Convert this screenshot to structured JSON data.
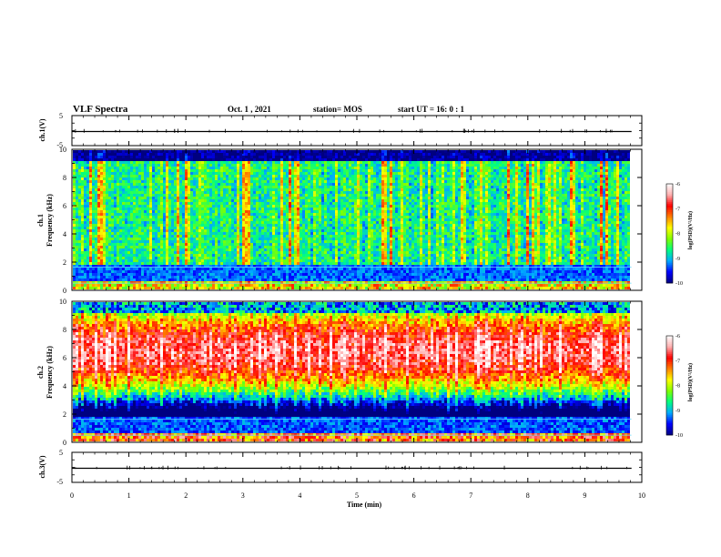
{
  "header": {
    "title": "VLF Spectra",
    "date": "Oct. 1 , 2021",
    "station": "station= MOS",
    "start": "start UT =  16: 0 : 1"
  },
  "chart_data": [
    {
      "type": "line",
      "panel": "ch1-waveform",
      "ylabel": "ch.1(V)",
      "ylim": [
        -5,
        5
      ],
      "y_ticks": [
        "5",
        "-5"
      ],
      "xlim": [
        0,
        10
      ],
      "series": [
        {
          "x": [
            0,
            9.82
          ],
          "values": [
            -0.3,
            -0.3
          ]
        }
      ]
    },
    {
      "type": "heatmap",
      "panel": "ch1-spectrogram",
      "ylabel_lines": [
        "ch.1",
        "Frequency (kHz)"
      ],
      "ylim": [
        0,
        10
      ],
      "y_ticks": [
        "0",
        "2",
        "4",
        "6",
        "8",
        "10"
      ],
      "xlim": [
        0,
        9.82
      ],
      "z_range": [
        -10,
        -6
      ],
      "dominant_level": -8.9,
      "colorbar": {
        "label": "log(PSD)(V²/Hz)",
        "ticks": [
          "-6",
          "-7",
          "-8",
          "-9",
          "-10"
        ],
        "range": [
          -10,
          -6
        ]
      }
    },
    {
      "type": "heatmap",
      "panel": "ch2-spectrogram",
      "ylabel_lines": [
        "ch.2",
        "Frequency (kHz)"
      ],
      "ylim": [
        0,
        10
      ],
      "y_ticks": [
        "0",
        "2",
        "4",
        "6",
        "8",
        "10"
      ],
      "xlim": [
        0,
        9.82
      ],
      "z_range": [
        -10,
        -6
      ],
      "band_peak_khz": [
        5.5,
        7.5
      ],
      "band_peak_level": -6.8,
      "colorbar": {
        "label": "log(PSD)(V²/Hz)",
        "ticks": [
          "-6",
          "-7",
          "-8",
          "-9",
          "-10"
        ],
        "range": [
          -10,
          -6
        ]
      }
    },
    {
      "type": "line",
      "panel": "ch3-waveform",
      "ylabel": "ch.3(V)",
      "ylim": [
        -5,
        5
      ],
      "y_ticks": [
        "5",
        "-5"
      ],
      "xlim": [
        0,
        10
      ],
      "series": [
        {
          "x": [
            0,
            9.82
          ],
          "values": [
            -0.3,
            -0.3
          ]
        }
      ]
    }
  ],
  "xaxis": {
    "label": "Time (min)",
    "ticks": [
      "0",
      "1",
      "2",
      "3",
      "4",
      "5",
      "6",
      "7",
      "8",
      "9",
      "10"
    ],
    "range": [
      0,
      10
    ]
  },
  "colors": {
    "colormap": [
      "#000080",
      "#0000ff",
      "#00aaff",
      "#00ff80",
      "#80ff00",
      "#ffff00",
      "#ff8000",
      "#ff0000",
      "#ffb0b0",
      "#ffffff"
    ]
  }
}
